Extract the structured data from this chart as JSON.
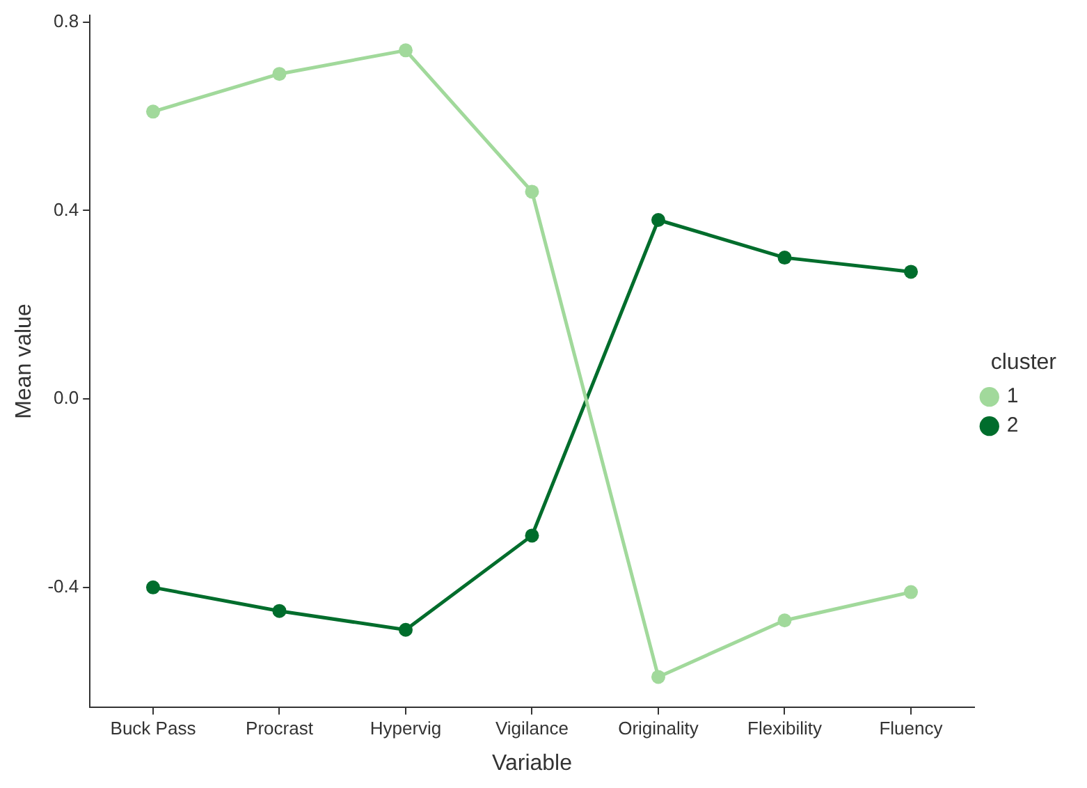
{
  "chart_data": {
    "type": "line",
    "xlabel": "Variable",
    "ylabel": "Mean value",
    "legend_title": "cluster",
    "categories": [
      "Buck Pass",
      "Procrast",
      "Hypervig",
      "Vigilance",
      "Originality",
      "Flexibility",
      "Fluency"
    ],
    "series": [
      {
        "name": "1",
        "color": "#a1d99b",
        "values": [
          0.61,
          0.69,
          0.74,
          0.44,
          -0.59,
          -0.47,
          -0.41
        ]
      },
      {
        "name": "2",
        "color": "#006d2c",
        "values": [
          -0.4,
          -0.45,
          -0.49,
          -0.29,
          0.38,
          0.3,
          0.27
        ]
      }
    ],
    "ylim": [
      -0.655,
      0.815
    ],
    "yticks": [
      0.8,
      0.4,
      {
        "value": 0,
        "label": "0.0"
      },
      -0.4
    ],
    "grid": false,
    "legend": "right",
    "marker": "circle",
    "line_style": "solid"
  }
}
